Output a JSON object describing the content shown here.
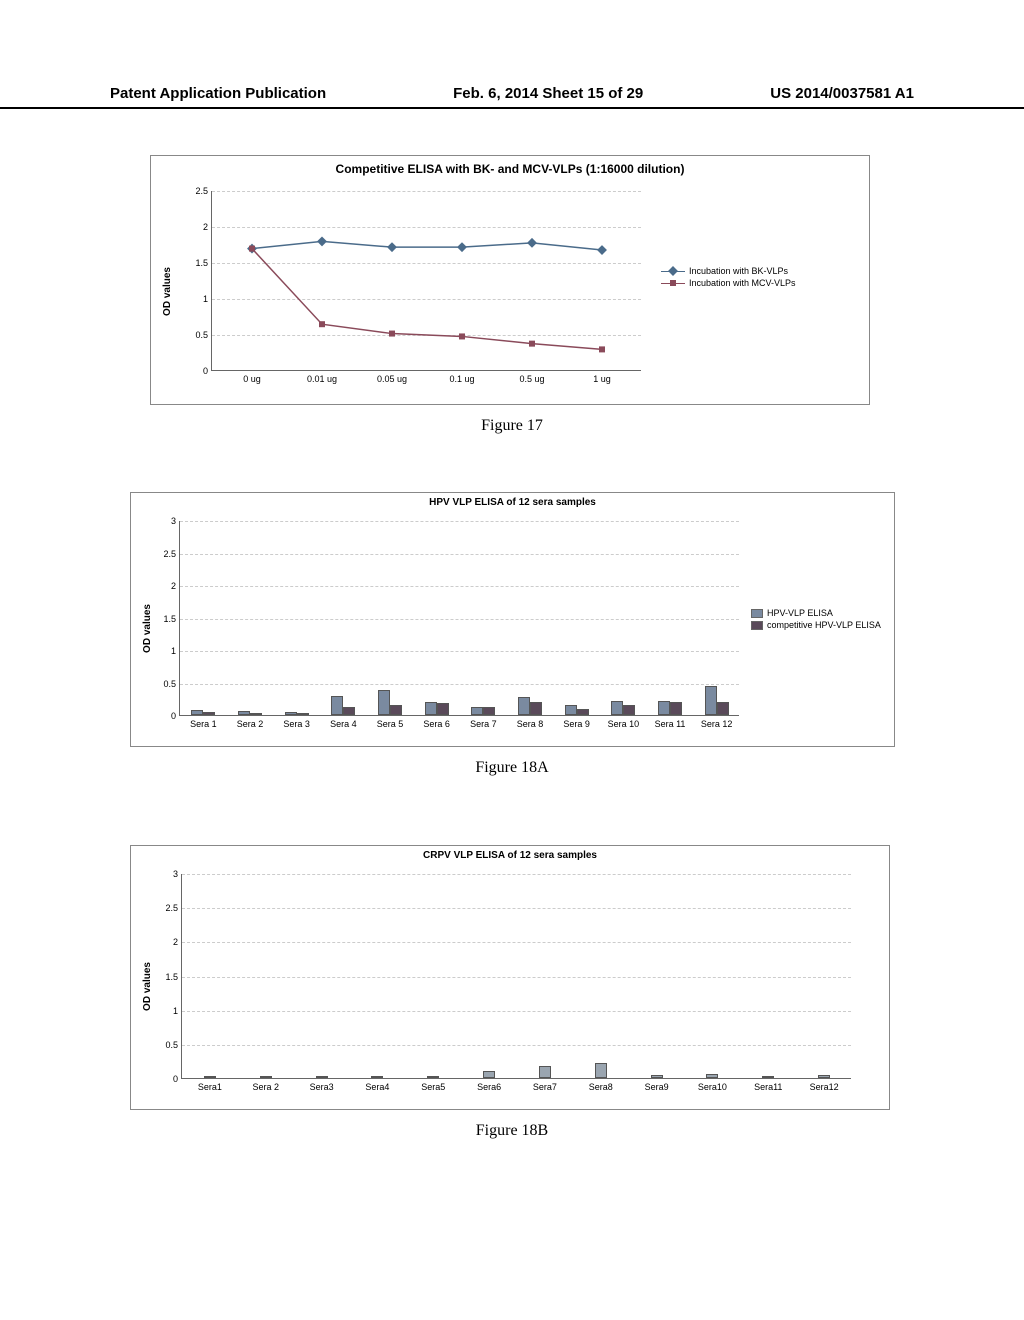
{
  "header": {
    "left": "Patent Application Publication",
    "center": "Feb. 6, 2014  Sheet 15 of 29",
    "right": "US 2014/0037581 A1"
  },
  "figure17": {
    "label": "Figure 17",
    "title": "Competitive ELISA with BK- and MCV-VLPs (1:16000 dilution)",
    "ylabel": "OD values",
    "ylim": [
      0,
      2.5
    ],
    "ytick_step": 0.5,
    "categories": [
      "0 ug",
      "0.01 ug",
      "0.05 ug",
      "0.1 ug",
      "0.5 ug",
      "1 ug"
    ],
    "series": [
      {
        "name": "Incubation with BK-VLPs",
        "color": "#4a6b8a",
        "marker": "diamond",
        "values": [
          1.7,
          1.8,
          1.72,
          1.72,
          1.78,
          1.68
        ]
      },
      {
        "name": "Incubation with MCV-VLPs",
        "color": "#8a4a5a",
        "marker": "square",
        "values": [
          1.7,
          0.65,
          0.52,
          0.48,
          0.38,
          0.3
        ]
      }
    ],
    "grid_color": "#cccccc",
    "background_color": "#ffffff"
  },
  "figure18a": {
    "label": "Figure 18A",
    "title": "HPV VLP ELISA of 12 sera samples",
    "ylabel": "OD values",
    "ylim": [
      0,
      3
    ],
    "ytick_step": 0.5,
    "categories": [
      "Sera 1",
      "Sera 2",
      "Sera 3",
      "Sera 4",
      "Sera 5",
      "Sera 6",
      "Sera 7",
      "Sera 8",
      "Sera 9",
      "Sera 10",
      "Sera 11",
      "Sera 12"
    ],
    "series": [
      {
        "name": "HPV-VLP ELISA",
        "color": "#7a8aa0",
        "values": [
          0.08,
          0.06,
          0.05,
          0.3,
          0.38,
          0.2,
          0.12,
          0.28,
          0.15,
          0.22,
          0.22,
          0.45
        ]
      },
      {
        "name": "competitive HPV-VLP ELISA",
        "color": "#5a4a5a",
        "values": [
          0.04,
          0.03,
          0.03,
          0.12,
          0.15,
          0.18,
          0.12,
          0.2,
          0.1,
          0.15,
          0.2,
          0.2
        ]
      }
    ],
    "grid_color": "#cccccc"
  },
  "figure18b": {
    "label": "Figure 18B",
    "title": "CRPV VLP ELISA of 12 sera samples",
    "ylabel": "OD values",
    "ylim": [
      0,
      3
    ],
    "ytick_step": 0.5,
    "categories": [
      "Sera1",
      "Sera 2",
      "Sera3",
      "Sera4",
      "Sera5",
      "Sera6",
      "Sera7",
      "Sera8",
      "Sera9",
      "Sera10",
      "Sera11",
      "Sera12"
    ],
    "series": [
      {
        "name": "",
        "color": "#9aa5b0",
        "values": [
          0.03,
          0.02,
          0.02,
          0.03,
          0.03,
          0.1,
          0.17,
          0.22,
          0.04,
          0.06,
          0.03,
          0.05
        ]
      }
    ],
    "grid_color": "#cccccc"
  }
}
